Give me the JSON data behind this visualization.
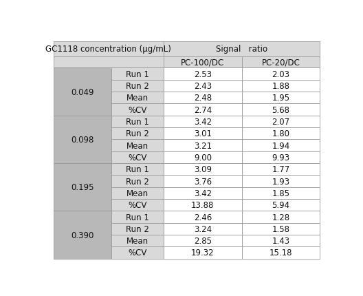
{
  "col_header": "GC1118 concentration (μg/mL)",
  "signal_ratio_header": "Signal   ratio",
  "subheaders": [
    "PC-100/DC",
    "PC-20/DC"
  ],
  "concentrations": [
    "0.049",
    "0.098",
    "0.195",
    "0.390"
  ],
  "row_labels": [
    "Run 1",
    "Run 2",
    "Mean",
    "%CV"
  ],
  "data": {
    "0.049": [
      [
        "2.53",
        "2.03"
      ],
      [
        "2.43",
        "1.88"
      ],
      [
        "2.48",
        "1.95"
      ],
      [
        "2.74",
        "5.68"
      ]
    ],
    "0.098": [
      [
        "3.42",
        "2.07"
      ],
      [
        "3.01",
        "1.80"
      ],
      [
        "3.21",
        "1.94"
      ],
      [
        "9.00",
        "9.93"
      ]
    ],
    "0.195": [
      [
        "3.09",
        "1.77"
      ],
      [
        "3.76",
        "1.93"
      ],
      [
        "3.42",
        "1.85"
      ],
      [
        "13.88",
        "5.94"
      ]
    ],
    "0.390": [
      [
        "2.46",
        "1.28"
      ],
      [
        "3.24",
        "1.58"
      ],
      [
        "2.85",
        "1.43"
      ],
      [
        "19.32",
        "15.18"
      ]
    ]
  },
  "bg_color_header": "#d9d9d9",
  "bg_color_conc": "#b8b8b8",
  "bg_color_label": "#d9d9d9",
  "bg_color_data": "#ffffff",
  "border_color": "#999999",
  "text_color": "#111111",
  "font_size": 8.5
}
